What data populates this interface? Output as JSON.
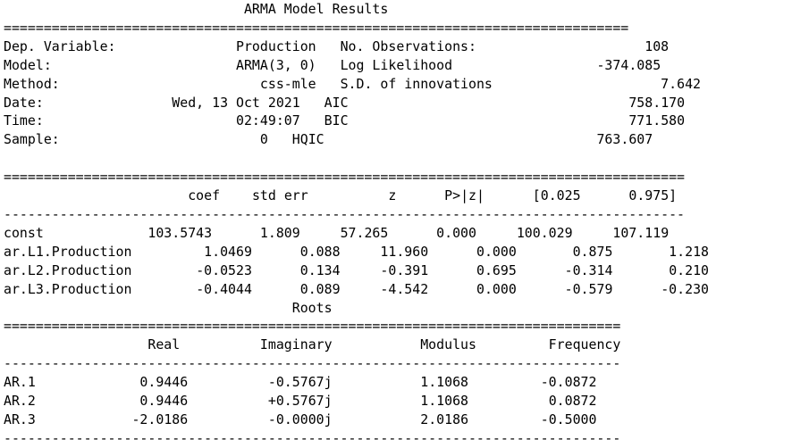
{
  "title": "ARMA Model Results",
  "header_sep": "==============================================================================",
  "model_info": [
    {
      "left_label": "Dep. Variable:",
      "left_value": "Production",
      "right_label": "No. Observations:",
      "right_value": "108"
    },
    {
      "left_label": "Model:",
      "left_value": "ARMA(3, 0)",
      "right_label": "Log Likelihood",
      "right_value": "-374.085"
    },
    {
      "left_label": "Method:",
      "left_value": "css-mle",
      "right_label": "S.D. of innovations",
      "right_value": "7.642"
    },
    {
      "left_label": "Date:",
      "left_value": "Wed, 13 Oct 2021",
      "right_label": "AIC",
      "right_value": "758.170"
    },
    {
      "left_label": "Time:",
      "left_value": "02:49:07",
      "right_label": "BIC",
      "right_value": "771.580"
    },
    {
      "left_label": "Sample:",
      "left_value": "0",
      "right_label": "HQIC",
      "right_value": "763.607"
    }
  ],
  "coef_table": {
    "sep_double": "=====================================================================================",
    "sep_single": "-------------------------------------------------------------------------------------",
    "columns": [
      "coef",
      "std err",
      "z",
      "P>|z|",
      "[0.025",
      "0.975]"
    ],
    "rows": [
      {
        "name": "const",
        "values": [
          "103.5743",
          "1.809",
          "57.265",
          "0.000",
          "100.029",
          "107.119"
        ]
      },
      {
        "name": "ar.L1.Production",
        "values": [
          "1.0469",
          "0.088",
          "11.960",
          "0.000",
          "0.875",
          "1.218"
        ]
      },
      {
        "name": "ar.L2.Production",
        "values": [
          "-0.0523",
          "0.134",
          "-0.391",
          "0.695",
          "-0.314",
          "0.210"
        ]
      },
      {
        "name": "ar.L3.Production",
        "values": [
          "-0.4044",
          "0.089",
          "-4.542",
          "0.000",
          "-0.579",
          "-0.230"
        ]
      }
    ]
  },
  "roots_table": {
    "title": "Roots",
    "sep_double": "=============================================================================",
    "sep_single": "-----------------------------------------------------------------------------",
    "columns": [
      "Real",
      "Imaginary",
      "Modulus",
      "Frequency"
    ],
    "rows": [
      {
        "name": "AR.1",
        "values": [
          "0.9446",
          "-0.5767j",
          "1.1068",
          "-0.0872"
        ]
      },
      {
        "name": "AR.2",
        "values": [
          "0.9446",
          "+0.5767j",
          "1.1068",
          "0.0872"
        ]
      },
      {
        "name": "AR.3",
        "values": [
          "-2.0186",
          "-0.0000j",
          "2.0186",
          "-0.5000"
        ]
      }
    ]
  }
}
